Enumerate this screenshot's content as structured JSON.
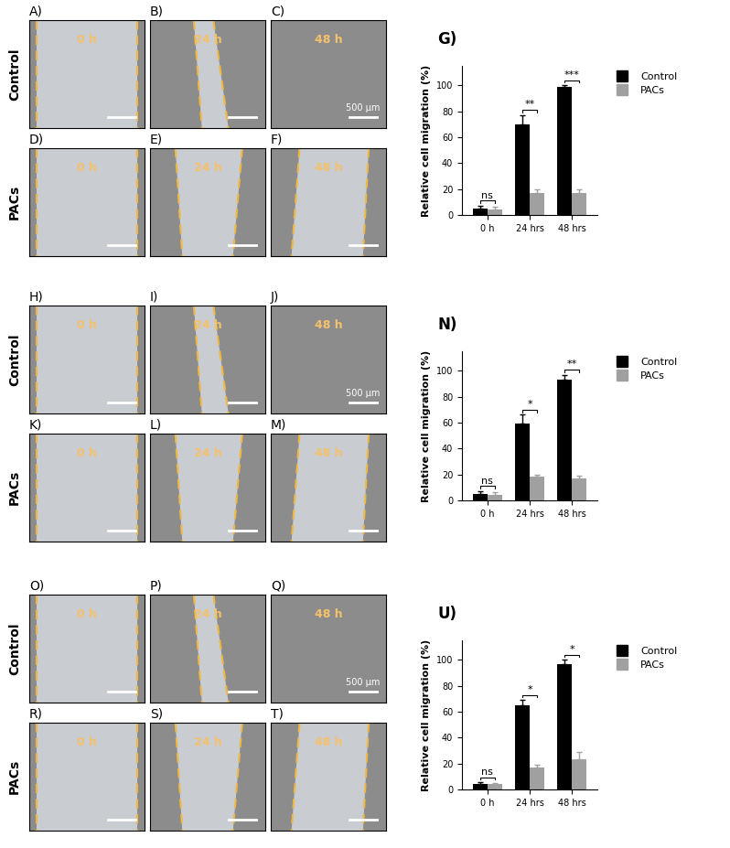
{
  "image_panels": [
    {
      "rows": [
        {
          "label": "Control",
          "panels": [
            {
              "letter": "A)",
              "time": "0 h"
            },
            {
              "letter": "B)",
              "time": "24 h"
            },
            {
              "letter": "C)",
              "time": "48 h",
              "scale_bar": "500 µm"
            }
          ]
        },
        {
          "label": "PACs",
          "panels": [
            {
              "letter": "D)",
              "time": "0 h"
            },
            {
              "letter": "E)",
              "time": "24 h"
            },
            {
              "letter": "F)",
              "time": "48 h"
            }
          ]
        }
      ]
    },
    {
      "rows": [
        {
          "label": "Control",
          "panels": [
            {
              "letter": "H)",
              "time": "0 h"
            },
            {
              "letter": "I)",
              "time": "24 h"
            },
            {
              "letter": "J)",
              "time": "48 h",
              "scale_bar": "500 µm"
            }
          ]
        },
        {
          "label": "PACs",
          "panels": [
            {
              "letter": "K)",
              "time": "0 h"
            },
            {
              "letter": "L)",
              "time": "24 h"
            },
            {
              "letter": "M)",
              "time": "48 h"
            }
          ]
        }
      ]
    },
    {
      "rows": [
        {
          "label": "Control",
          "panels": [
            {
              "letter": "O)",
              "time": "0 h"
            },
            {
              "letter": "P)",
              "time": "24 h"
            },
            {
              "letter": "Q)",
              "time": "48 h",
              "scale_bar": "500 µm"
            }
          ]
        },
        {
          "label": "PACs",
          "panels": [
            {
              "letter": "R)",
              "time": "0 h"
            },
            {
              "letter": "S)",
              "time": "24 h"
            },
            {
              "letter": "T)",
              "time": "48 h"
            }
          ]
        }
      ]
    }
  ],
  "chart_data": [
    {
      "type": "bar",
      "title": "G)",
      "y_label": "Relative cell migration (%)",
      "categories": [
        "0 h",
        "24 hrs",
        "48 hrs"
      ],
      "series": [
        {
          "name": "Control",
          "color": "#000000",
          "values": [
            5,
            70,
            99
          ],
          "errors": [
            2,
            7,
            1
          ]
        },
        {
          "name": "PACs",
          "color": "#a0a0a0",
          "values": [
            4,
            17,
            17
          ],
          "errors": [
            2,
            3,
            3
          ]
        }
      ],
      "significance": [
        "ns",
        "**",
        "***"
      ],
      "ylim": [
        0,
        115
      ],
      "yticks": [
        0,
        20,
        40,
        60,
        80,
        100
      ],
      "legend": "upper left"
    },
    {
      "type": "bar",
      "title": "N)",
      "y_label": "Relative cell migration (%)",
      "categories": [
        "0 h",
        "24 hrs",
        "48 hrs"
      ],
      "series": [
        {
          "name": "Control",
          "color": "#000000",
          "values": [
            5,
            59,
            93
          ],
          "errors": [
            2,
            7,
            4
          ]
        },
        {
          "name": "PACs",
          "color": "#a0a0a0",
          "values": [
            4,
            18,
            17
          ],
          "errors": [
            2,
            2,
            2
          ]
        }
      ],
      "significance": [
        "ns",
        "*",
        "**"
      ],
      "ylim": [
        0,
        115
      ],
      "yticks": [
        0,
        20,
        40,
        60,
        80,
        100
      ],
      "legend": "upper left"
    },
    {
      "type": "bar",
      "title": "U)",
      "y_label": "Relative cell migration (%)",
      "categories": [
        "0 h",
        "24 hrs",
        "48 hrs"
      ],
      "series": [
        {
          "name": "Control",
          "color": "#000000",
          "values": [
            4,
            65,
            97
          ],
          "errors": [
            1.5,
            4,
            3
          ]
        },
        {
          "name": "PACs",
          "color": "#a0a0a0",
          "values": [
            4,
            17,
            23
          ],
          "errors": [
            1,
            2,
            6
          ]
        }
      ],
      "significance": [
        "ns",
        "*",
        "*"
      ],
      "ylim": [
        0,
        115
      ],
      "yticks": [
        0,
        20,
        40,
        60,
        80,
        100
      ],
      "legend": "upper left"
    }
  ]
}
